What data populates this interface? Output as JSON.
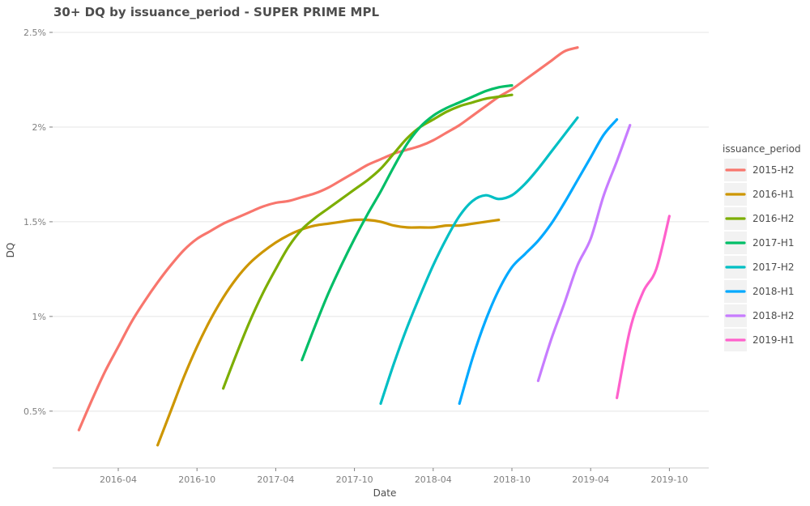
{
  "chart_data": {
    "type": "line",
    "title": "30+ DQ by issuance_period - SUPER PRIME MPL",
    "xlabel": "Date",
    "ylabel": "DQ",
    "x_ticks": [
      "2016-04",
      "2016-10",
      "2017-04",
      "2017-10",
      "2018-04",
      "2018-10",
      "2019-04",
      "2019-10"
    ],
    "x_range": [
      "2015-11",
      "2020-01"
    ],
    "y_ticks": [
      {
        "value": 0.5,
        "label": "0.5%"
      },
      {
        "value": 1.0,
        "label": "1%"
      },
      {
        "value": 1.5,
        "label": "1.5%"
      },
      {
        "value": 2.0,
        "label": "2%"
      },
      {
        "value": 2.5,
        "label": "2.5%"
      }
    ],
    "ylim": [
      0.2,
      2.5
    ],
    "grid": "horizontal",
    "legend": {
      "title": "issuance_period",
      "position": "right"
    },
    "series": [
      {
        "name": "2015-H2",
        "color": "#F8766D",
        "points": [
          [
            "2016-01",
            0.4
          ],
          [
            "2016-02",
            0.56
          ],
          [
            "2016-03",
            0.71
          ],
          [
            "2016-04",
            0.84
          ],
          [
            "2016-05",
            0.97
          ],
          [
            "2016-06",
            1.08
          ],
          [
            "2016-07",
            1.18
          ],
          [
            "2016-08",
            1.27
          ],
          [
            "2016-09",
            1.35
          ],
          [
            "2016-10",
            1.41
          ],
          [
            "2016-11",
            1.45
          ],
          [
            "2016-12",
            1.49
          ],
          [
            "2017-01",
            1.52
          ],
          [
            "2017-02",
            1.55
          ],
          [
            "2017-03",
            1.58
          ],
          [
            "2017-04",
            1.6
          ],
          [
            "2017-05",
            1.61
          ],
          [
            "2017-06",
            1.63
          ],
          [
            "2017-07",
            1.65
          ],
          [
            "2017-08",
            1.68
          ],
          [
            "2017-09",
            1.72
          ],
          [
            "2017-10",
            1.76
          ],
          [
            "2017-11",
            1.8
          ],
          [
            "2017-12",
            1.83
          ],
          [
            "2018-01",
            1.86
          ],
          [
            "2018-02",
            1.88
          ],
          [
            "2018-03",
            1.9
          ],
          [
            "2018-04",
            1.93
          ],
          [
            "2018-05",
            1.97
          ],
          [
            "2018-06",
            2.01
          ],
          [
            "2018-07",
            2.06
          ],
          [
            "2018-08",
            2.11
          ],
          [
            "2018-09",
            2.16
          ],
          [
            "2018-10",
            2.2
          ],
          [
            "2018-11",
            2.25
          ],
          [
            "2018-12",
            2.3
          ],
          [
            "2019-01",
            2.35
          ],
          [
            "2019-02",
            2.4
          ],
          [
            "2019-03",
            2.42
          ]
        ]
      },
      {
        "name": "2016-H1",
        "color": "#CD9600",
        "points": [
          [
            "2016-07",
            0.32
          ],
          [
            "2016-08",
            0.5
          ],
          [
            "2016-09",
            0.68
          ],
          [
            "2016-10",
            0.84
          ],
          [
            "2016-11",
            0.98
          ],
          [
            "2016-12",
            1.1
          ],
          [
            "2017-01",
            1.2
          ],
          [
            "2017-02",
            1.28
          ],
          [
            "2017-03",
            1.34
          ],
          [
            "2017-04",
            1.39
          ],
          [
            "2017-05",
            1.43
          ],
          [
            "2017-06",
            1.46
          ],
          [
            "2017-07",
            1.48
          ],
          [
            "2017-08",
            1.49
          ],
          [
            "2017-09",
            1.5
          ],
          [
            "2017-10",
            1.51
          ],
          [
            "2017-11",
            1.51
          ],
          [
            "2017-12",
            1.5
          ],
          [
            "2018-01",
            1.48
          ],
          [
            "2018-02",
            1.47
          ],
          [
            "2018-03",
            1.47
          ],
          [
            "2018-04",
            1.47
          ],
          [
            "2018-05",
            1.48
          ],
          [
            "2018-06",
            1.48
          ],
          [
            "2018-07",
            1.49
          ],
          [
            "2018-08",
            1.5
          ],
          [
            "2018-09",
            1.51
          ]
        ]
      },
      {
        "name": "2016-H2",
        "color": "#7CAE00",
        "points": [
          [
            "2016-12",
            0.62
          ],
          [
            "2017-01",
            0.8
          ],
          [
            "2017-02",
            0.97
          ],
          [
            "2017-03",
            1.12
          ],
          [
            "2017-04",
            1.25
          ],
          [
            "2017-05",
            1.37
          ],
          [
            "2017-06",
            1.46
          ],
          [
            "2017-07",
            1.52
          ],
          [
            "2017-08",
            1.57
          ],
          [
            "2017-09",
            1.62
          ],
          [
            "2017-10",
            1.67
          ],
          [
            "2017-11",
            1.72
          ],
          [
            "2017-12",
            1.78
          ],
          [
            "2018-01",
            1.86
          ],
          [
            "2018-02",
            1.94
          ],
          [
            "2018-03",
            2.0
          ],
          [
            "2018-04",
            2.04
          ],
          [
            "2018-05",
            2.08
          ],
          [
            "2018-06",
            2.11
          ],
          [
            "2018-07",
            2.13
          ],
          [
            "2018-08",
            2.15
          ],
          [
            "2018-09",
            2.16
          ],
          [
            "2018-10",
            2.17
          ]
        ]
      },
      {
        "name": "2017-H1",
        "color": "#00BE67",
        "points": [
          [
            "2017-06",
            0.77
          ],
          [
            "2017-07",
            0.95
          ],
          [
            "2017-08",
            1.12
          ],
          [
            "2017-09",
            1.27
          ],
          [
            "2017-10",
            1.41
          ],
          [
            "2017-11",
            1.54
          ],
          [
            "2017-12",
            1.66
          ],
          [
            "2018-01",
            1.79
          ],
          [
            "2018-02",
            1.91
          ],
          [
            "2018-03",
            2.0
          ],
          [
            "2018-04",
            2.06
          ],
          [
            "2018-05",
            2.1
          ],
          [
            "2018-06",
            2.13
          ],
          [
            "2018-07",
            2.16
          ],
          [
            "2018-08",
            2.19
          ],
          [
            "2018-09",
            2.21
          ],
          [
            "2018-10",
            2.22
          ]
        ]
      },
      {
        "name": "2017-H2",
        "color": "#00BFC4",
        "points": [
          [
            "2017-12",
            0.54
          ],
          [
            "2018-01",
            0.75
          ],
          [
            "2018-02",
            0.94
          ],
          [
            "2018-03",
            1.11
          ],
          [
            "2018-04",
            1.27
          ],
          [
            "2018-05",
            1.41
          ],
          [
            "2018-06",
            1.53
          ],
          [
            "2018-07",
            1.61
          ],
          [
            "2018-08",
            1.64
          ],
          [
            "2018-09",
            1.62
          ],
          [
            "2018-10",
            1.64
          ],
          [
            "2018-11",
            1.7
          ],
          [
            "2018-12",
            1.78
          ],
          [
            "2019-01",
            1.87
          ],
          [
            "2019-02",
            1.96
          ],
          [
            "2019-03",
            2.05
          ]
        ]
      },
      {
        "name": "2018-H1",
        "color": "#00A9FF",
        "points": [
          [
            "2018-06",
            0.54
          ],
          [
            "2018-07",
            0.78
          ],
          [
            "2018-08",
            0.98
          ],
          [
            "2018-09",
            1.14
          ],
          [
            "2018-10",
            1.26
          ],
          [
            "2018-11",
            1.33
          ],
          [
            "2018-12",
            1.4
          ],
          [
            "2019-01",
            1.49
          ],
          [
            "2019-02",
            1.6
          ],
          [
            "2019-03",
            1.72
          ],
          [
            "2019-04",
            1.84
          ],
          [
            "2019-05",
            1.96
          ],
          [
            "2019-06",
            2.04
          ]
        ]
      },
      {
        "name": "2018-H2",
        "color": "#C77CFF",
        "points": [
          [
            "2018-12",
            0.66
          ],
          [
            "2019-01",
            0.88
          ],
          [
            "2019-02",
            1.07
          ],
          [
            "2019-03",
            1.27
          ],
          [
            "2019-04",
            1.41
          ],
          [
            "2019-05",
            1.64
          ],
          [
            "2019-06",
            1.82
          ],
          [
            "2019-07",
            2.01
          ]
        ]
      },
      {
        "name": "2019-H1",
        "color": "#FF61CC",
        "points": [
          [
            "2019-06",
            0.57
          ],
          [
            "2019-07",
            0.93
          ],
          [
            "2019-08",
            1.13
          ],
          [
            "2019-09",
            1.25
          ],
          [
            "2019-10",
            1.53
          ]
        ]
      }
    ]
  }
}
